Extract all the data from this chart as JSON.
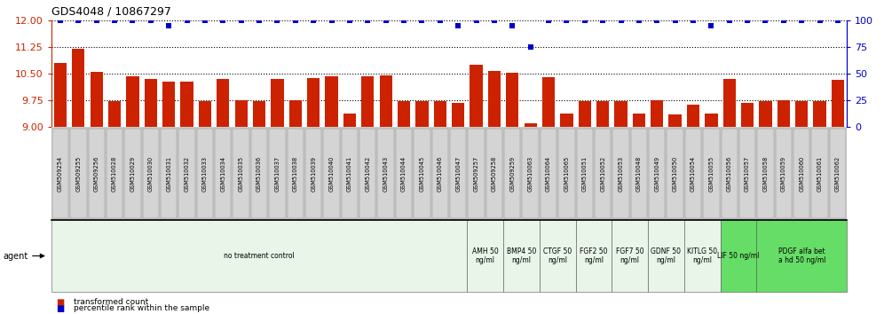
{
  "title": "GDS4048 / 10867297",
  "categories": [
    "GSM509254",
    "GSM509255",
    "GSM509256",
    "GSM510028",
    "GSM510029",
    "GSM510030",
    "GSM510031",
    "GSM510032",
    "GSM510033",
    "GSM510034",
    "GSM510035",
    "GSM510036",
    "GSM510037",
    "GSM510038",
    "GSM510039",
    "GSM510040",
    "GSM510041",
    "GSM510042",
    "GSM510043",
    "GSM510044",
    "GSM510045",
    "GSM510046",
    "GSM510047",
    "GSM509257",
    "GSM509258",
    "GSM509259",
    "GSM510063",
    "GSM510064",
    "GSM510065",
    "GSM510051",
    "GSM510052",
    "GSM510053",
    "GSM510048",
    "GSM510049",
    "GSM510050",
    "GSM510054",
    "GSM510055",
    "GSM510056",
    "GSM510057",
    "GSM510058",
    "GSM510059",
    "GSM510060",
    "GSM510061",
    "GSM510062"
  ],
  "bar_values": [
    10.8,
    11.2,
    10.55,
    9.72,
    10.42,
    10.35,
    10.28,
    10.28,
    9.72,
    10.35,
    9.75,
    9.72,
    10.35,
    9.75,
    10.38,
    10.42,
    9.38,
    10.42,
    10.45,
    9.72,
    9.72,
    9.72,
    9.68,
    10.75,
    10.58,
    10.52,
    9.12,
    10.4,
    9.38,
    9.72,
    9.72,
    9.72,
    9.38,
    9.75,
    9.35,
    9.62,
    9.38,
    10.35,
    9.68,
    9.72,
    9.75,
    9.72,
    9.72,
    10.32
  ],
  "percentile_values": [
    100,
    100,
    100,
    100,
    100,
    100,
    95,
    100,
    100,
    100,
    100,
    100,
    100,
    100,
    100,
    100,
    100,
    100,
    100,
    100,
    100,
    100,
    95,
    100,
    100,
    95,
    75,
    100,
    100,
    100,
    100,
    100,
    100,
    100,
    100,
    100,
    95,
    100,
    100,
    100,
    100,
    100,
    100,
    100
  ],
  "ylim_left": [
    9,
    12
  ],
  "ylim_right": [
    0,
    100
  ],
  "yticks_left": [
    9,
    9.75,
    10.5,
    11.25,
    12
  ],
  "yticks_right": [
    0,
    25,
    50,
    75,
    100
  ],
  "bar_color": "#cc2200",
  "dot_color": "#0000cc",
  "grid_color": "#000000",
  "bg_color": "#ffffff",
  "xtick_bg_color": "#cccccc",
  "left_axis_color": "#cc2200",
  "right_axis_color": "#0000cc",
  "title_fontsize": 9,
  "bar_width": 0.7,
  "agent_groups": [
    {
      "label": "no treatment control",
      "start": 0,
      "end": 23,
      "color": "#e8f5e8"
    },
    {
      "label": "AMH 50\nng/ml",
      "start": 23,
      "end": 25,
      "color": "#e8f5e8"
    },
    {
      "label": "BMP4 50\nng/ml",
      "start": 25,
      "end": 27,
      "color": "#e8f5e8"
    },
    {
      "label": "CTGF 50\nng/ml",
      "start": 27,
      "end": 29,
      "color": "#e8f5e8"
    },
    {
      "label": "FGF2 50\nng/ml",
      "start": 29,
      "end": 31,
      "color": "#e8f5e8"
    },
    {
      "label": "FGF7 50\nng/ml",
      "start": 31,
      "end": 33,
      "color": "#e8f5e8"
    },
    {
      "label": "GDNF 50\nng/ml",
      "start": 33,
      "end": 35,
      "color": "#e8f5e8"
    },
    {
      "label": "KITLG 50\nng/ml",
      "start": 35,
      "end": 37,
      "color": "#e8f5e8"
    },
    {
      "label": "LIF 50 ng/ml",
      "start": 37,
      "end": 39,
      "color": "#66dd66"
    },
    {
      "label": "PDGF alfa bet\na hd 50 ng/ml",
      "start": 39,
      "end": 44,
      "color": "#66dd66"
    }
  ]
}
